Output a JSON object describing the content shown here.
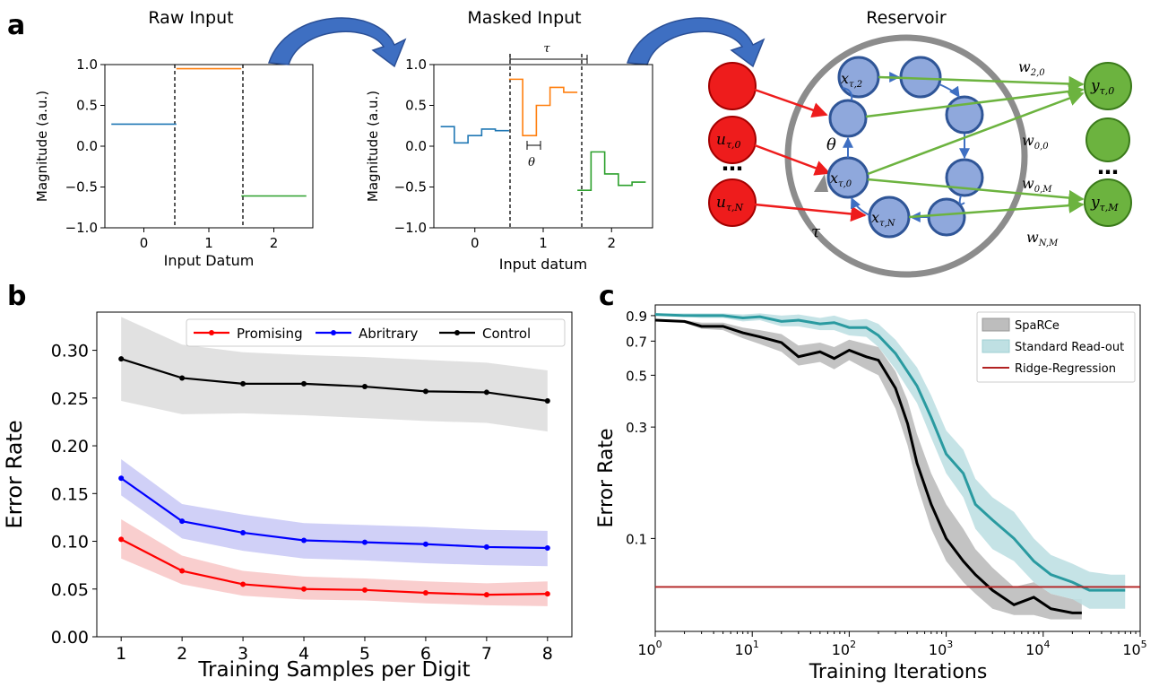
{
  "panel_labels": {
    "a": "a",
    "b": "b",
    "c": "c"
  },
  "colors": {
    "blue": "#1f77b4",
    "orange": "#ff7f0e",
    "green": "#2ca02c",
    "promising": "#ff0000",
    "abritrary": "#0000ff",
    "control": "#000000",
    "sparce": "#000000",
    "sparce_band": "#bdbdbd",
    "standard": "#2a9aa0",
    "standard_band": "#bfe0e3",
    "ridge": "#b22222",
    "node_red": "#ee1c1c",
    "node_blue": "#8fa8dc",
    "node_green": "#6cb33f",
    "ring": "#8c8c8c",
    "arrow": "#3e6fc2"
  },
  "panel_a": {
    "raw": {
      "title": "Raw Input",
      "ylabel": "Magnitude (a.u.)",
      "xlabel": "Input Datum",
      "xticks": [
        "0",
        "1",
        "2"
      ],
      "yticks": [
        "1.0",
        "0.5",
        "0.0",
        "−0.5",
        "−1.0"
      ]
    },
    "masked": {
      "title": "Masked Input",
      "ylabel": "Magnitude (a.u.)",
      "xlabel": "Input datum",
      "xticks": [
        "0",
        "1",
        "2"
      ],
      "yticks": [
        "1.0",
        "0.5",
        "0.0",
        "−0.5",
        "−1.0"
      ],
      "tau_label": "τ",
      "theta_label": "θ"
    },
    "reservoir": {
      "title": "Reservoir",
      "inputs": [
        "u",
        "u"
      ],
      "input_subs": [
        "τ,0",
        "τ,N"
      ],
      "states": [
        "x",
        "x",
        "x"
      ],
      "state_subs": [
        "τ,2",
        "τ,0",
        "τ,N"
      ],
      "outputs": [
        "y",
        "y"
      ],
      "output_subs": [
        "τ,0",
        "τ,M"
      ],
      "weights": [
        "w",
        "w",
        "w",
        "w"
      ],
      "weight_subs": [
        "2,0",
        "0,0",
        "0,M",
        "N,M"
      ],
      "theta_label": "θ",
      "tau_label": "τ",
      "dots": "⋯"
    }
  },
  "chart_data": [
    {
      "type": "step",
      "title": "Raw Input",
      "xlabel": "Input Datum",
      "ylabel": "Magnitude (a.u.)",
      "xlim": [
        -0.6,
        2.6
      ],
      "ylim": [
        -1.0,
        1.0
      ],
      "series": [
        {
          "x": [
            -0.5,
            0.5
          ],
          "values": [
            0.27,
            0.27
          ]
        },
        {
          "x": [
            0.5,
            1.5
          ],
          "values": [
            0.95,
            0.95
          ]
        },
        {
          "x": [
            1.5,
            2.5
          ],
          "values": [
            -0.61,
            -0.61
          ]
        }
      ],
      "dividers": [
        0.5,
        1.5
      ]
    },
    {
      "type": "step",
      "title": "Masked Input",
      "xlabel": "Input datum",
      "ylabel": "Magnitude (a.u.)",
      "xlim": [
        -0.6,
        2.6
      ],
      "ylim": [
        -1.0,
        1.0
      ],
      "series": [
        {
          "edges": [
            -0.5,
            -0.3,
            -0.1,
            0.1,
            0.3,
            0.5
          ],
          "values": [
            0.24,
            0.04,
            0.13,
            0.21,
            0.19
          ]
        },
        {
          "edges": [
            0.5,
            0.7,
            0.9,
            1.1,
            1.3,
            1.5
          ],
          "values": [
            0.82,
            0.13,
            0.5,
            0.72,
            0.66
          ]
        },
        {
          "edges": [
            1.5,
            1.7,
            1.9,
            2.1,
            2.3,
            2.5
          ],
          "values": [
            -0.54,
            -0.07,
            -0.34,
            -0.48,
            -0.44
          ]
        }
      ],
      "dividers": [
        0.5,
        1.5
      ]
    },
    {
      "type": "line",
      "xlabel": "Training Samples per Digit",
      "ylabel": "Error Rate",
      "x": [
        1,
        2,
        3,
        4,
        5,
        6,
        7,
        8
      ],
      "xlim": [
        0.6,
        8.4
      ],
      "ylim": [
        0.0,
        0.34
      ],
      "yticks": [
        "0.00",
        "0.05",
        "0.10",
        "0.15",
        "0.20",
        "0.25",
        "0.30"
      ],
      "legend": "top-right",
      "series": [
        {
          "name": "Promising",
          "values": [
            0.102,
            0.069,
            0.055,
            0.05,
            0.049,
            0.046,
            0.044,
            0.045
          ],
          "lower": [
            0.082,
            0.055,
            0.043,
            0.039,
            0.038,
            0.035,
            0.033,
            0.032
          ],
          "upper": [
            0.123,
            0.085,
            0.069,
            0.063,
            0.061,
            0.058,
            0.056,
            0.058
          ]
        },
        {
          "name": "Abritrary",
          "values": [
            0.166,
            0.121,
            0.109,
            0.101,
            0.099,
            0.097,
            0.094,
            0.093
          ],
          "lower": [
            0.148,
            0.103,
            0.09,
            0.082,
            0.08,
            0.077,
            0.075,
            0.074
          ],
          "upper": [
            0.186,
            0.139,
            0.128,
            0.119,
            0.117,
            0.115,
            0.112,
            0.111
          ]
        },
        {
          "name": "Control",
          "values": [
            0.291,
            0.271,
            0.265,
            0.265,
            0.262,
            0.257,
            0.256,
            0.247
          ],
          "lower": [
            0.247,
            0.233,
            0.234,
            0.232,
            0.229,
            0.226,
            0.224,
            0.215
          ],
          "upper": [
            0.335,
            0.306,
            0.298,
            0.295,
            0.293,
            0.29,
            0.287,
            0.279
          ]
        }
      ]
    },
    {
      "type": "line",
      "xlabel": "Training Iterations",
      "ylabel": "Error Rate",
      "xscale": "log",
      "yscale": "log",
      "xlim": [
        1,
        100000
      ],
      "ylim": [
        0.04,
        1.0
      ],
      "xticks": [
        "10",
        "10",
        "10",
        "10",
        "10",
        "10"
      ],
      "xtick_exps": [
        "0",
        "1",
        "2",
        "3",
        "4",
        "5"
      ],
      "yticks": [
        "0.9",
        "0.7",
        "0.5",
        "0.3",
        "0.1"
      ],
      "legend": "top-right",
      "series": [
        {
          "name": "SpaRCe",
          "x": [
            1,
            2,
            3,
            5,
            8,
            12,
            20,
            30,
            50,
            70,
            100,
            150,
            200,
            300,
            400,
            500,
            700,
            1000,
            1500,
            2000,
            3000,
            5000,
            8000,
            12000,
            20000,
            25000
          ],
          "values": [
            0.86,
            0.85,
            0.81,
            0.81,
            0.76,
            0.73,
            0.69,
            0.6,
            0.63,
            0.59,
            0.64,
            0.6,
            0.58,
            0.44,
            0.31,
            0.21,
            0.14,
            0.1,
            0.08,
            0.07,
            0.06,
            0.052,
            0.056,
            0.05,
            0.048,
            0.048
          ],
          "lower": [
            0.86,
            0.84,
            0.79,
            0.78,
            0.72,
            0.68,
            0.63,
            0.55,
            0.57,
            0.53,
            0.58,
            0.53,
            0.5,
            0.36,
            0.25,
            0.17,
            0.11,
            0.08,
            0.065,
            0.058,
            0.05,
            0.047,
            0.047,
            0.045,
            0.045,
            0.045
          ],
          "upper": [
            0.87,
            0.86,
            0.84,
            0.84,
            0.8,
            0.78,
            0.75,
            0.67,
            0.69,
            0.66,
            0.71,
            0.68,
            0.66,
            0.52,
            0.39,
            0.28,
            0.19,
            0.14,
            0.11,
            0.09,
            0.075,
            0.062,
            0.065,
            0.058,
            0.055,
            0.055
          ]
        },
        {
          "name": "Standard Read-out",
          "x": [
            1,
            2,
            3,
            5,
            8,
            12,
            20,
            30,
            50,
            70,
            100,
            150,
            200,
            300,
            500,
            700,
            1000,
            1500,
            2000,
            3000,
            5000,
            8000,
            12000,
            20000,
            30000,
            50000,
            70000
          ],
          "values": [
            0.91,
            0.9,
            0.9,
            0.9,
            0.88,
            0.89,
            0.85,
            0.86,
            0.83,
            0.84,
            0.8,
            0.8,
            0.74,
            0.62,
            0.45,
            0.33,
            0.23,
            0.19,
            0.14,
            0.12,
            0.1,
            0.08,
            0.07,
            0.065,
            0.06,
            0.06,
            0.06
          ],
          "lower": [
            0.9,
            0.89,
            0.88,
            0.88,
            0.85,
            0.86,
            0.81,
            0.81,
            0.78,
            0.78,
            0.74,
            0.73,
            0.66,
            0.53,
            0.38,
            0.27,
            0.19,
            0.15,
            0.11,
            0.09,
            0.08,
            0.065,
            0.058,
            0.055,
            0.05,
            0.05,
            0.05
          ],
          "upper": [
            0.92,
            0.92,
            0.92,
            0.92,
            0.91,
            0.92,
            0.9,
            0.91,
            0.88,
            0.9,
            0.86,
            0.87,
            0.83,
            0.71,
            0.54,
            0.41,
            0.29,
            0.24,
            0.18,
            0.15,
            0.13,
            0.1,
            0.085,
            0.078,
            0.072,
            0.07,
            0.07
          ]
        },
        {
          "name": "Ridge-Regression",
          "x": [
            1,
            100000
          ],
          "values": [
            0.062,
            0.062
          ]
        }
      ]
    }
  ]
}
